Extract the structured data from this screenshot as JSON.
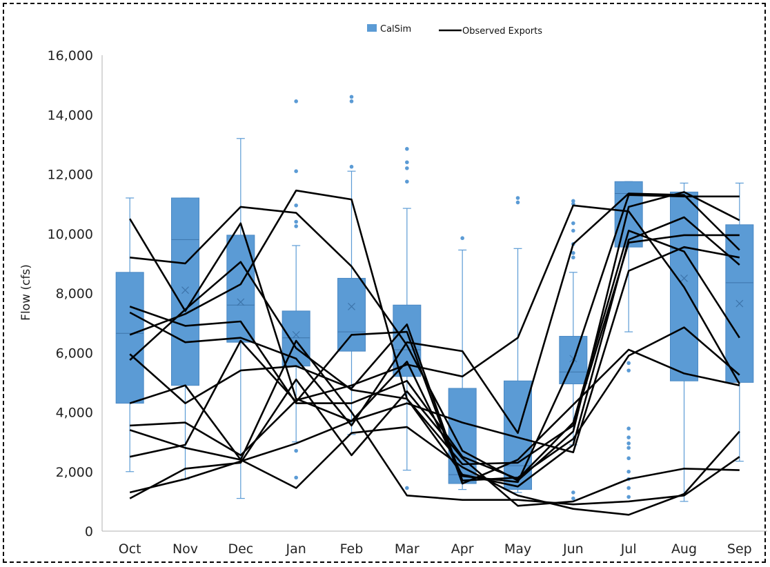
{
  "chart_data": {
    "type": "box",
    "title": "",
    "xlabel": "",
    "ylabel": "Flow (cfs)",
    "ylim": [
      0,
      16000
    ],
    "yticks": [
      0,
      2000,
      4000,
      6000,
      8000,
      10000,
      12000,
      14000,
      16000
    ],
    "ytick_labels": [
      "0",
      "2,000",
      "4,000",
      "6,000",
      "8,000",
      "10,000",
      "12,000",
      "14,000",
      "16,000"
    ],
    "grid": false,
    "legend_position": "top-center",
    "legend": [
      {
        "label": "CalSim",
        "kind": "box",
        "color": "#5b9bd5"
      },
      {
        "label": "Observed Exports",
        "kind": "line",
        "color": "#000000"
      }
    ],
    "categories": [
      "Oct",
      "Nov",
      "Dec",
      "Jan",
      "Feb",
      "Mar",
      "Apr",
      "May",
      "Jun",
      "Jul",
      "Aug",
      "Sep"
    ],
    "boxes": [
      {
        "min": 2000,
        "q1": 4300,
        "median": 6650,
        "q3": 8700,
        "max": 11200,
        "mean": null,
        "outliers": []
      },
      {
        "min": 1750,
        "q1": 4900,
        "median": 9800,
        "q3": 11200,
        "max": 11200,
        "mean": 8100,
        "outliers": []
      },
      {
        "min": 1100,
        "q1": 6350,
        "median": 7600,
        "q3": 9950,
        "max": 13200,
        "mean": 7700,
        "outliers": []
      },
      {
        "min": 3000,
        "q1": 5550,
        "median": 6500,
        "q3": 7400,
        "max": 9600,
        "mean": 6600,
        "outliers": [
          14450,
          12100,
          10950,
          10400,
          10250,
          2700,
          1800
        ]
      },
      {
        "min": 3250,
        "q1": 6050,
        "median": 6700,
        "q3": 8500,
        "max": 12100,
        "mean": 7550,
        "outliers": [
          14600,
          14450,
          12250
        ]
      },
      {
        "min": 2050,
        "q1": 5200,
        "median": 6100,
        "q3": 7600,
        "max": 10850,
        "mean": null,
        "outliers": [
          12850,
          12400,
          12200,
          11750,
          1450
        ]
      },
      {
        "min": 1400,
        "q1": 1600,
        "median": 1900,
        "q3": 4800,
        "max": 9450,
        "mean": null,
        "outliers": [
          9850
        ]
      },
      {
        "min": 1300,
        "q1": 1400,
        "median": 2200,
        "q3": 5050,
        "max": 9500,
        "mean": null,
        "outliers": [
          11200,
          11050
        ]
      },
      {
        "min": 2900,
        "q1": 4950,
        "median": 5350,
        "q3": 6550,
        "max": 8700,
        "mean": 5800,
        "outliers": [
          11100,
          11000,
          10350,
          10100,
          9650,
          9350,
          9200,
          1300,
          1100
        ]
      },
      {
        "min": 6700,
        "q1": 9550,
        "median": 11350,
        "q3": 11750,
        "max": 11750,
        "mean": null,
        "outliers": [
          5650,
          5400,
          3450,
          3150,
          2950,
          2800,
          2450,
          2000,
          1750,
          1450,
          1150
        ]
      },
      {
        "min": 1000,
        "q1": 5050,
        "median": 9500,
        "q3": 11400,
        "max": 11700,
        "mean": 8500,
        "outliers": []
      },
      {
        "min": 2350,
        "q1": 5000,
        "median": 8350,
        "q3": 10300,
        "max": 11700,
        "mean": 7650,
        "outliers": []
      }
    ],
    "series": [
      {
        "values": [
          10500,
          7400,
          10350,
          4450,
          3700,
          5700,
          1850,
          1650,
          5700,
          11300,
          11250,
          11250
        ]
      },
      {
        "values": [
          9200,
          9000,
          10900,
          10700,
          8900,
          6250,
          2700,
          1700,
          3350,
          10900,
          11400,
          10450
        ]
      },
      {
        "values": [
          7550,
          6900,
          7050,
          4300,
          4300,
          5050,
          2500,
          1750,
          3650,
          10100,
          9400,
          6500
        ]
      },
      {
        "values": [
          7350,
          6350,
          6500,
          5800,
          3550,
          6350,
          6050,
          3300,
          9650,
          11350,
          11300,
          9450
        ]
      },
      {
        "values": [
          6600,
          7300,
          8300,
          11450,
          11150,
          4450,
          1900,
          1500,
          2900,
          9800,
          10550,
          8950
        ]
      },
      {
        "values": [
          5750,
          7450,
          9050,
          6150,
          4750,
          4450,
          2250,
          2300,
          3550,
          9700,
          9950,
          9950
        ]
      },
      {
        "values": [
          5950,
          4300,
          5400,
          5550,
          4800,
          6950,
          1700,
          1800,
          3100,
          5900,
          6850,
          5250
        ]
      },
      {
        "values": [
          4300,
          4900,
          2400,
          6400,
          4000,
          1200,
          1050,
          1050,
          900,
          1000,
          1200,
          2500
        ]
      },
      {
        "values": [
          3550,
          3650,
          2550,
          4400,
          4900,
          5600,
          5200,
          6500,
          10950,
          10750,
          8200,
          4950
        ]
      },
      {
        "values": [
          3400,
          2800,
          2400,
          1450,
          3300,
          3500,
          2150,
          1200,
          750,
          550,
          1250,
          3350
        ]
      },
      {
        "values": [
          2500,
          2900,
          6400,
          4350,
          6600,
          6700,
          1600,
          2400,
          4250,
          6100,
          5300,
          4900
        ]
      },
      {
        "values": [
          1300,
          1750,
          2350,
          2950,
          3700,
          4300,
          3650,
          3150,
          2650,
          8750,
          9550,
          9200
        ]
      },
      {
        "values": [
          1100,
          2100,
          2300,
          5100,
          2550,
          4700,
          2450,
          850,
          1000,
          1750,
          2100,
          2050
        ]
      }
    ]
  }
}
